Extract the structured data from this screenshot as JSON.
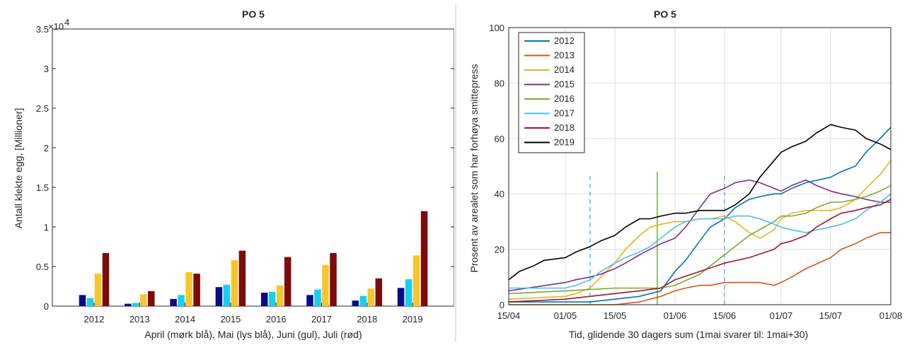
{
  "chart_data": [
    {
      "type": "bar",
      "title": "PO 5",
      "xlabel": "April (mørk blå), Mai (lys blå), Juni (gul), Juli (rød)",
      "ylabel": "Antall klekte egg, [Millioner]",
      "exponent_label": "×10",
      "exponent_power": "4",
      "ylim": [
        0,
        35000
      ],
      "yticks": [
        0,
        5000,
        10000,
        15000,
        20000,
        25000,
        30000,
        35000
      ],
      "ytick_labels": [
        "0",
        "0.5",
        "1",
        "1.5",
        "2",
        "2.5",
        "3",
        "3.5"
      ],
      "categories": [
        "2012",
        "2013",
        "2014",
        "2015",
        "2016",
        "2017",
        "2018",
        "2019"
      ],
      "grid": false,
      "series": [
        {
          "color": "#0a0a8c",
          "values": [
            1400,
            300,
            900,
            2400,
            1700,
            1400,
            700,
            2300
          ]
        },
        {
          "color": "#16d0f0",
          "values": [
            1000,
            400,
            1400,
            2700,
            1800,
            2100,
            1300,
            3400
          ]
        },
        {
          "color": "#f7c62b",
          "values": [
            4100,
            1500,
            4300,
            5800,
            2600,
            5200,
            2200,
            6400
          ]
        },
        {
          "color": "#7f0a0a",
          "values": [
            6700,
            1900,
            4100,
            7000,
            6200,
            6700,
            3500,
            12000
          ]
        }
      ]
    },
    {
      "type": "line",
      "title": "PO 5",
      "xlabel": "Tid, glidende 30 dagers sum (1mai svarer til: 1mai+30)",
      "ylabel": "Prosent av arealet som har forhøya smittepress",
      "xlim": [
        "15/04",
        "01/08"
      ],
      "x_tick_labels": [
        "15/04",
        "01/05",
        "15/05",
        "01/06",
        "15/06",
        "01/07",
        "15/07",
        "01/08"
      ],
      "ylim": [
        0,
        100
      ],
      "yticks": [
        0,
        20,
        40,
        60,
        80,
        100
      ],
      "grid": true,
      "legend_position": "top-left",
      "x_start": "2000-04-15",
      "series": [
        {
          "name": "2012",
          "color": "#0072bd",
          "x": [
            "15/04",
            "01/05",
            "08/05",
            "15/05",
            "22/05",
            "28/05",
            "01/06",
            "04/06",
            "08/06",
            "11/06",
            "15/06",
            "18/06",
            "22/06",
            "25/06",
            "29/06",
            "01/07",
            "04/07",
            "08/07",
            "15/07",
            "18/07",
            "22/07",
            "25/07",
            "29/07",
            "01/08"
          ],
          "y": [
            1,
            1,
            1,
            2,
            3,
            5,
            12,
            16,
            23,
            28,
            31,
            35,
            38,
            39,
            40,
            40,
            42,
            44,
            46,
            48,
            50,
            55,
            60,
            64
          ]
        },
        {
          "name": "2013",
          "color": "#d95319",
          "x": [
            "15/04",
            "01/05",
            "08/05",
            "15/05",
            "22/05",
            "28/05",
            "01/06",
            "04/06",
            "08/06",
            "11/06",
            "15/06",
            "18/06",
            "22/06",
            "25/06",
            "29/06",
            "01/07",
            "04/07",
            "08/07",
            "15/07",
            "18/07",
            "22/07",
            "25/07",
            "29/07",
            "01/08"
          ],
          "y": [
            0,
            0,
            0,
            0,
            1,
            3,
            5,
            6,
            7,
            7,
            8,
            8,
            8,
            8,
            7,
            8,
            10,
            13,
            17,
            20,
            22,
            24,
            26,
            26
          ]
        },
        {
          "name": "2014",
          "color": "#edb120",
          "x": [
            "15/04",
            "01/05",
            "04/05",
            "08/05",
            "11/05",
            "15/05",
            "18/05",
            "22/05",
            "25/05",
            "28/05",
            "01/06",
            "04/06",
            "08/06",
            "11/06",
            "15/06",
            "18/06",
            "22/06",
            "25/06",
            "29/06",
            "01/07",
            "04/07",
            "08/07",
            "11/07",
            "15/07",
            "18/07",
            "22/07",
            "25/07",
            "29/07",
            "01/08"
          ],
          "y": [
            2,
            3,
            4,
            6,
            10,
            15,
            20,
            25,
            28,
            29,
            30,
            30,
            31,
            31,
            32,
            30,
            26,
            24,
            27,
            31,
            33,
            34,
            34,
            34,
            35,
            38,
            42,
            47,
            52
          ]
        },
        {
          "name": "2015",
          "color": "#7e2f8e",
          "x": [
            "15/04",
            "01/05",
            "04/05",
            "08/05",
            "11/05",
            "15/05",
            "18/05",
            "22/05",
            "25/05",
            "28/05",
            "01/06",
            "04/06",
            "08/06",
            "11/06",
            "15/06",
            "18/06",
            "22/06",
            "25/06",
            "29/06",
            "01/07",
            "04/07",
            "08/07",
            "11/07",
            "15/07",
            "18/07",
            "22/07",
            "25/07",
            "29/07",
            "01/08"
          ],
          "y": [
            5,
            8,
            9,
            10,
            11,
            13,
            15,
            18,
            20,
            22,
            24,
            28,
            35,
            40,
            42,
            44,
            45,
            44,
            42,
            41,
            43,
            45,
            43,
            41,
            40,
            39,
            38,
            37,
            37
          ]
        },
        {
          "name": "2016",
          "color": "#77ac30",
          "x": [
            "15/04",
            "01/05",
            "15/05",
            "22/05",
            "28/05",
            "01/06",
            "08/06",
            "15/06",
            "22/06",
            "29/06",
            "01/07",
            "04/07",
            "08/07",
            "11/07",
            "15/07",
            "18/07",
            "22/07",
            "25/07",
            "29/07",
            "01/08"
          ],
          "y": [
            4,
            5,
            6,
            6,
            6,
            7,
            11,
            18,
            25,
            30,
            32,
            32,
            33,
            35,
            37,
            37,
            38,
            39,
            41,
            43
          ]
        },
        {
          "name": "2017",
          "color": "#4dbeee",
          "x": [
            "15/04",
            "01/05",
            "04/05",
            "08/05",
            "11/05",
            "15/05",
            "18/05",
            "22/05",
            "25/05",
            "28/05",
            "01/06",
            "04/06",
            "08/06",
            "11/06",
            "15/06",
            "18/06",
            "22/06",
            "25/06",
            "29/06",
            "01/07",
            "04/07",
            "08/07",
            "11/07",
            "15/07",
            "18/07",
            "22/07",
            "25/07",
            "29/07",
            "01/08"
          ],
          "y": [
            6,
            6,
            7,
            9,
            12,
            15,
            17,
            19,
            21,
            24,
            28,
            30,
            31,
            31,
            31,
            32,
            32,
            31,
            29,
            28,
            27,
            26,
            27,
            28,
            29,
            31,
            34,
            37,
            40
          ]
        },
        {
          "name": "2018",
          "color": "#a2142f",
          "x": [
            "15/04",
            "01/05",
            "08/05",
            "15/05",
            "22/05",
            "28/05",
            "01/06",
            "08/06",
            "15/06",
            "22/06",
            "29/06",
            "01/07",
            "04/07",
            "08/07",
            "11/07",
            "15/07",
            "18/07",
            "22/07",
            "25/07",
            "29/07",
            "01/08"
          ],
          "y": [
            1,
            2,
            3,
            4,
            5,
            6,
            9,
            12,
            15,
            17,
            20,
            22,
            23,
            25,
            28,
            31,
            33,
            34,
            35,
            36,
            38
          ]
        },
        {
          "name": "2019",
          "color": "#000000",
          "x": [
            "15/04",
            "18/04",
            "22/04",
            "25/04",
            "01/05",
            "04/05",
            "08/05",
            "11/05",
            "15/05",
            "18/05",
            "22/05",
            "25/05",
            "28/05",
            "01/06",
            "04/06",
            "08/06",
            "11/06",
            "15/06",
            "18/06",
            "22/06",
            "25/06",
            "29/06",
            "01/07",
            "04/07",
            "08/07",
            "11/07",
            "15/07",
            "18/07",
            "22/07",
            "25/07",
            "29/07",
            "01/08"
          ],
          "y": [
            9,
            12,
            14,
            16,
            17,
            19,
            21,
            23,
            25,
            28,
            31,
            31,
            32,
            33,
            33,
            34,
            34,
            34,
            36,
            40,
            46,
            52,
            55,
            57,
            59,
            62,
            65,
            64,
            63,
            60,
            58,
            56
          ]
        }
      ],
      "vertical_markers": [
        {
          "x": "08/05",
          "style": "dashed",
          "color": "#4dbeee",
          "y_top": 47
        },
        {
          "x": "27/05",
          "style": "solid",
          "color": "#77ac30",
          "y_top": 48
        },
        {
          "x": "15/06",
          "style": "dashed",
          "color": "#4dbeee",
          "y_top": 47
        }
      ]
    }
  ]
}
